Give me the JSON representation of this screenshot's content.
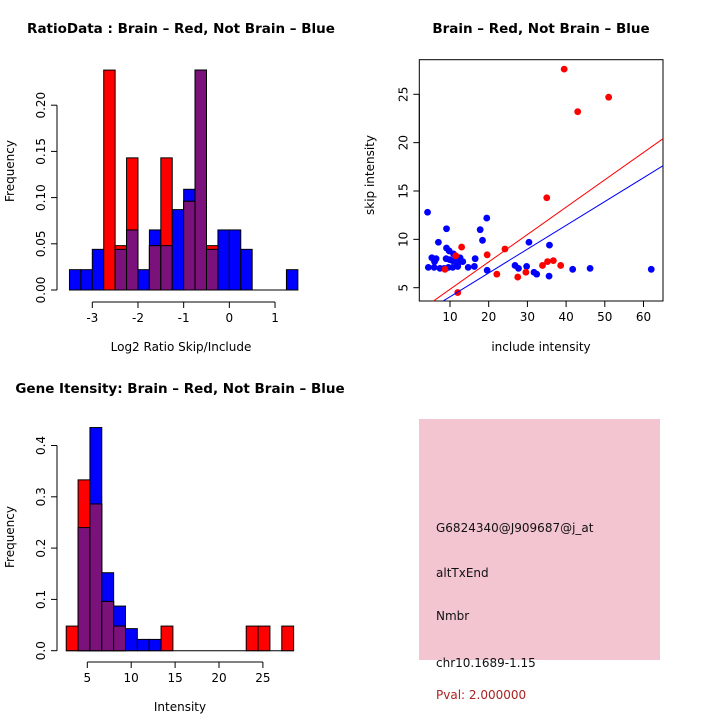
{
  "colors": {
    "red": "#ff0000",
    "blue": "#0000ff",
    "overlap_purple": "#7b117b",
    "pink_box": "#f2c5d0",
    "pval_text": "#aa2222",
    "axis": "#000000"
  },
  "chart_data": [
    {
      "id": "ratio-histogram",
      "type": "bar",
      "title": "RatioData : Brain – Red, Not Brain – Blue",
      "xlabel": "Log2 Ratio Skip/Include",
      "ylabel": "Frequency",
      "xticks": [
        -3,
        -2,
        -1,
        0,
        1
      ],
      "xtick_labels": [
        "-3",
        "-2",
        "-1",
        "0",
        "1"
      ],
      "yticks": [
        0,
        0.05,
        0.1,
        0.15,
        0.2
      ],
      "ytick_labels": [
        "0.00",
        "0.05",
        "0.10",
        "0.15",
        "0.20"
      ],
      "ylim": [
        0,
        0.248
      ],
      "bin_width": 0.25,
      "legend_note": "red = Brain, blue = Not Brain, purple = overlap",
      "bars": [
        {
          "x": -3.5,
          "red": 0,
          "blue": 0.022
        },
        {
          "x": -3.25,
          "red": 0,
          "blue": 0.022
        },
        {
          "x": -3.0,
          "red": 0,
          "blue": 0.044
        },
        {
          "x": -2.75,
          "red": 0.238,
          "blue": 0
        },
        {
          "x": -2.5,
          "red": 0.048,
          "blue": 0.044
        },
        {
          "x": -2.25,
          "red": 0.143,
          "blue": 0.065
        },
        {
          "x": -2.0,
          "red": 0,
          "blue": 0.022
        },
        {
          "x": -1.75,
          "red": 0.048,
          "blue": 0.065
        },
        {
          "x": -1.5,
          "red": 0.143,
          "blue": 0.048
        },
        {
          "x": -1.25,
          "red": 0,
          "blue": 0.087
        },
        {
          "x": -1.0,
          "red": 0.096,
          "blue": 0.109
        },
        {
          "x": -0.75,
          "red": 0.238,
          "blue": 0.238
        },
        {
          "x": -0.5,
          "red": 0.048,
          "blue": 0.044
        },
        {
          "x": -0.25,
          "red": 0,
          "blue": 0.065
        },
        {
          "x": 0.0,
          "red": 0,
          "blue": 0.065
        },
        {
          "x": 0.25,
          "red": 0,
          "blue": 0.044
        },
        {
          "x": 1.25,
          "red": 0,
          "blue": 0.022
        }
      ]
    },
    {
      "id": "intensity-scatter",
      "type": "scatter",
      "title": "Brain – Red, Not Brain – Blue",
      "xlabel": "include intensity",
      "ylabel": "skip intensity",
      "xticks": [
        10,
        20,
        30,
        40,
        50,
        60
      ],
      "xtick_labels": [
        "10",
        "20",
        "30",
        "40",
        "50",
        "60"
      ],
      "yticks": [
        5,
        10,
        15,
        20,
        25
      ],
      "ytick_labels": [
        "5",
        "10",
        "15",
        "20",
        "25"
      ],
      "xlim": [
        2.1,
        65
      ],
      "ylim": [
        3.6,
        28.6
      ],
      "red_points": [
        [
          39.5,
          27.6
        ],
        [
          51.0,
          24.7
        ],
        [
          43.0,
          23.2
        ],
        [
          35.0,
          14.3
        ],
        [
          13.0,
          9.2
        ],
        [
          24.2,
          9.0
        ],
        [
          19.6,
          8.4
        ],
        [
          11.5,
          8.3
        ],
        [
          36.7,
          7.8
        ],
        [
          35.2,
          7.7
        ],
        [
          38.6,
          7.3
        ],
        [
          33.9,
          7.3
        ],
        [
          8.7,
          6.9
        ],
        [
          29.6,
          6.6
        ],
        [
          22.1,
          6.4
        ],
        [
          27.5,
          6.1
        ],
        [
          12.0,
          4.5
        ]
      ],
      "blue_points": [
        [
          4.2,
          12.8
        ],
        [
          19.5,
          12.2
        ],
        [
          9.1,
          11.1
        ],
        [
          17.8,
          11.0
        ],
        [
          18.4,
          9.9
        ],
        [
          7.0,
          9.7
        ],
        [
          30.4,
          9.7
        ],
        [
          35.7,
          9.4
        ],
        [
          9.1,
          9.1
        ],
        [
          9.8,
          8.8
        ],
        [
          10.9,
          8.5
        ],
        [
          16.5,
          8.0
        ],
        [
          12.6,
          8.1
        ],
        [
          5.3,
          8.1
        ],
        [
          6.4,
          8.0
        ],
        [
          9.0,
          8.0
        ],
        [
          9.9,
          7.9
        ],
        [
          10.6,
          7.8
        ],
        [
          11.5,
          7.7
        ],
        [
          6.0,
          7.7
        ],
        [
          12.2,
          7.6
        ],
        [
          13.3,
          7.7
        ],
        [
          4.4,
          7.1
        ],
        [
          5.9,
          7.1
        ],
        [
          7.4,
          7.0
        ],
        [
          8.5,
          7.0
        ],
        [
          9.6,
          7.1
        ],
        [
          10.7,
          7.1
        ],
        [
          12.0,
          7.2
        ],
        [
          14.7,
          7.1
        ],
        [
          16.3,
          7.2
        ],
        [
          26.8,
          7.3
        ],
        [
          19.6,
          6.8
        ],
        [
          27.7,
          7.0
        ],
        [
          29.8,
          7.2
        ],
        [
          31.7,
          6.6
        ],
        [
          32.4,
          6.4
        ],
        [
          41.7,
          6.9
        ],
        [
          46.2,
          7.0
        ],
        [
          62.0,
          6.9
        ],
        [
          35.6,
          6.2
        ]
      ],
      "red_line": {
        "x1": 5.7,
        "y1": 3.62,
        "x2": 65.0,
        "y2": 20.4
      },
      "blue_line": {
        "x1": 8.2,
        "y1": 3.62,
        "x2": 65.0,
        "y2": 17.6
      }
    },
    {
      "id": "gene-intensity-histogram",
      "type": "bar",
      "title": "Gene Itensity: Brain – Red, Not Brain – Blue",
      "xlabel": "Intensity",
      "ylabel": "Frequency",
      "xticks": [
        5,
        10,
        15,
        20,
        25
      ],
      "xtick_labels": [
        "5",
        "10",
        "15",
        "20",
        "25"
      ],
      "yticks": [
        0,
        0.1,
        0.2,
        0.3,
        0.4
      ],
      "ytick_labels": [
        "0.0",
        "0.1",
        "0.2",
        "0.3",
        "0.4"
      ],
      "ylim": [
        0,
        0.45
      ],
      "bin_width": 1.35,
      "legend_note": "red = Brain, blue = Not Brain, purple = overlap",
      "bars": [
        {
          "x": 2.6,
          "red": 0.048,
          "blue": 0
        },
        {
          "x": 3.95,
          "red": 0.333,
          "blue": 0.24
        },
        {
          "x": 5.3,
          "red": 0.286,
          "blue": 0.435
        },
        {
          "x": 6.65,
          "red": 0.096,
          "blue": 0.152
        },
        {
          "x": 8.0,
          "red": 0.048,
          "blue": 0.087
        },
        {
          "x": 9.35,
          "red": 0,
          "blue": 0.043
        },
        {
          "x": 10.7,
          "red": 0,
          "blue": 0.022
        },
        {
          "x": 12.05,
          "red": 0,
          "blue": 0.022
        },
        {
          "x": 13.4,
          "red": 0.048,
          "blue": 0
        },
        {
          "x": 23.1,
          "red": 0.048,
          "blue": 0
        },
        {
          "x": 24.45,
          "red": 0.048,
          "blue": 0
        },
        {
          "x": 27.15,
          "red": 0.048,
          "blue": 0
        }
      ]
    }
  ],
  "info_panel": {
    "probe_id": "G6824340@J909687@j_at",
    "event_type": "altTxEnd",
    "gene_name": "Nmbr",
    "locus": "chr10.1689-1.15",
    "pval": "Pval: 2.000000"
  }
}
